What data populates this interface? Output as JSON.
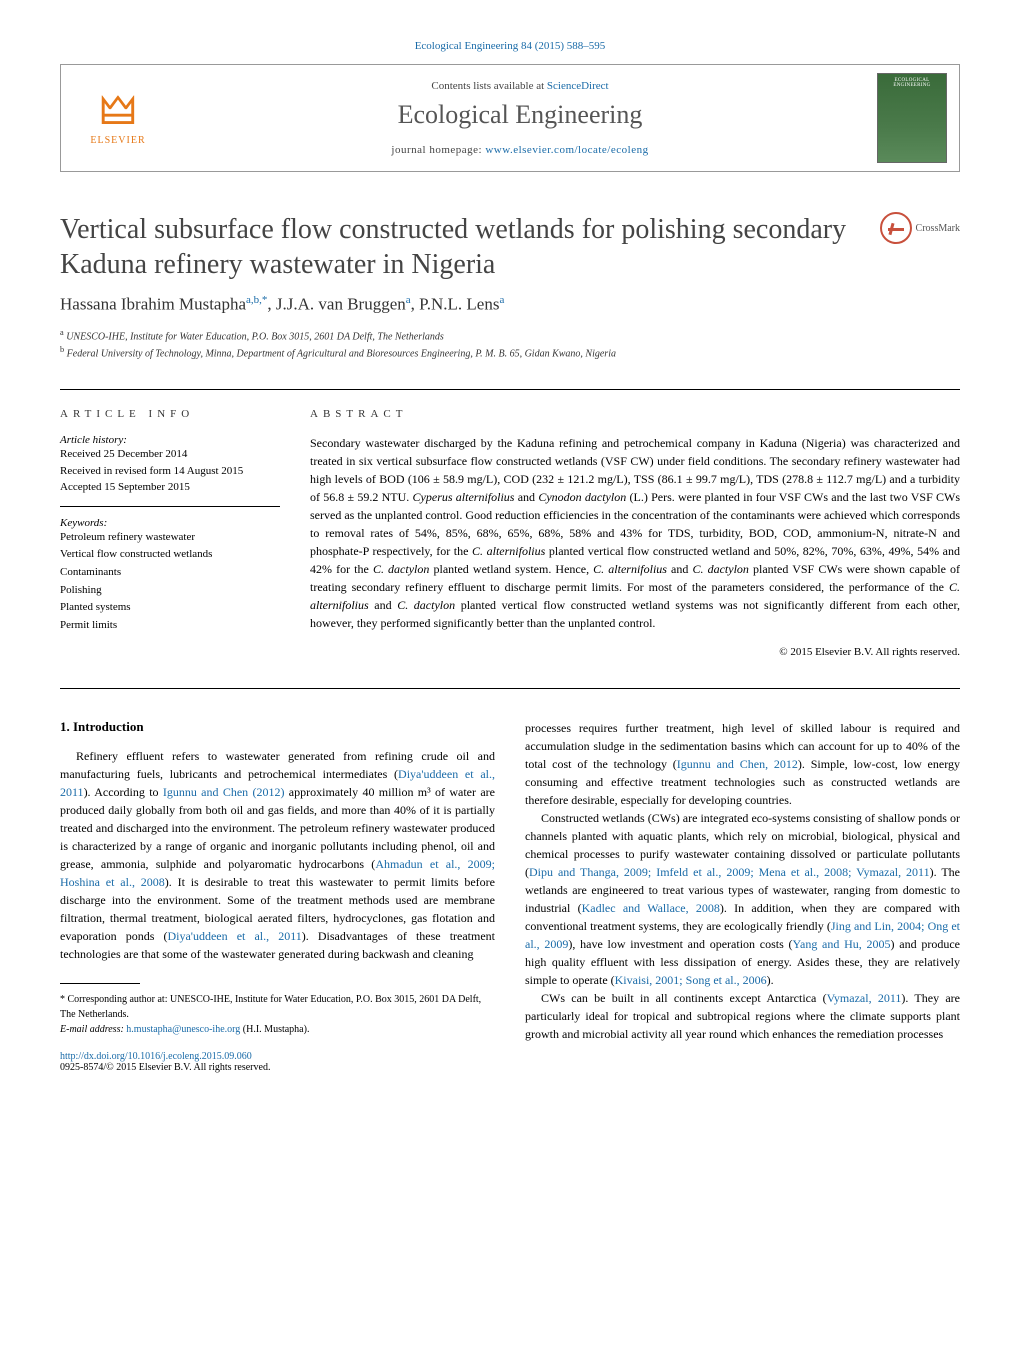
{
  "journal_ref": {
    "name": "Ecological Engineering",
    "vol_pages": "84 (2015) 588–595"
  },
  "header": {
    "contents_prefix": "Contents lists available at ",
    "contents_link": "ScienceDirect",
    "journal_name": "Ecological Engineering",
    "homepage_prefix": "journal homepage: ",
    "homepage_url": "www.elsevier.com/locate/ecoleng",
    "publisher": "ELSEVIER"
  },
  "title": "Vertical subsurface flow constructed wetlands for polishing secondary Kaduna refinery wastewater in Nigeria",
  "crossmark": "CrossMark",
  "authors_html": "Hassana Ibrahim Mustapha<sup>a,b,*</sup>, J.J.A. van Bruggen<sup>a</sup>, P.N.L. Lens<sup>a</sup>",
  "affiliations": {
    "a": "UNESCO-IHE, Institute for Water Education, P.O. Box 3015, 2601 DA Delft, The Netherlands",
    "b": "Federal University of Technology, Minna, Department of Agricultural and Bioresources Engineering, P. M. B. 65, Gidan Kwano, Nigeria"
  },
  "article_info": {
    "heading": "ARTICLE INFO",
    "history_label": "Article history:",
    "history": [
      "Received 25 December 2014",
      "Received in revised form 14 August 2015",
      "Accepted 15 September 2015"
    ],
    "keywords_label": "Keywords:",
    "keywords": [
      "Petroleum refinery wastewater",
      "Vertical flow constructed wetlands",
      "Contaminants",
      "Polishing",
      "Planted systems",
      "Permit limits"
    ]
  },
  "abstract": {
    "heading": "ABSTRACT",
    "text": "Secondary wastewater discharged by the Kaduna refining and petrochemical company in Kaduna (Nigeria) was characterized and treated in six vertical subsurface flow constructed wetlands (VSF CW) under field conditions. The secondary refinery wastewater had high levels of BOD (106 ± 58.9 mg/L), COD (232 ± 121.2 mg/L), TSS (86.1 ± 99.7 mg/L), TDS (278.8 ± 112.7 mg/L) and a turbidity of 56.8 ± 59.2 NTU. Cyperus alternifolius and Cynodon dactylon (L.) Pers. were planted in four VSF CWs and the last two VSF CWs served as the unplanted control. Good reduction efficiencies in the concentration of the contaminants were achieved which corresponds to removal rates of 54%, 85%, 68%, 65%, 68%, 58% and 43% for TDS, turbidity, BOD, COD, ammonium-N, nitrate-N and phosphate-P respectively, for the C. alternifolius planted vertical flow constructed wetland and 50%, 82%, 70%, 63%, 49%, 54% and 42% for the C. dactylon planted wetland system. Hence, C. alternifolius and C. dactylon planted VSF CWs were shown capable of treating secondary refinery effluent to discharge permit limits. For most of the parameters considered, the performance of the C. alternifolius and C. dactylon planted vertical flow constructed wetland systems was not significantly different from each other, however, they performed significantly better than the unplanted control.",
    "copyright": "© 2015 Elsevier B.V. All rights reserved."
  },
  "introduction": {
    "heading": "1. Introduction",
    "p1_pre": "Refinery effluent refers to wastewater generated from refining crude oil and manufacturing fuels, lubricants and petrochemical intermediates (",
    "p1_c1": "Diya'uddeen et al., 2011",
    "p1_mid1": "). According to ",
    "p1_c2": "Igunnu and Chen (2012)",
    "p1_mid2": " approximately 40 million m³ of water are produced daily globally from both oil and gas fields, and more than 40% of it is partially treated and discharged into the environment. The petroleum refinery wastewater produced is characterized by a range of organic and inorganic pollutants including phenol, oil and grease, ammonia, sulphide and polyaromatic hydrocarbons (",
    "p1_c3": "Ahmadun et al., 2009; Hoshina et al., 2008",
    "p1_mid3": "). It is desirable to treat this wastewater to permit limits before discharge into the environment. Some of the treatment methods used are membrane filtration, thermal treatment, biological aerated filters, hydrocyclones, gas flotation and evaporation ponds (",
    "p1_c4": "Diya'uddeen et al., 2011",
    "p1_post": "). Disadvantages of these treatment technologies are that some of the wastewater generated during backwash and cleaning",
    "p2_pre": "processes requires further treatment, high level of skilled labour is required and accumulation sludge in the sedimentation basins which can account for up to 40% of the total cost of the technology (",
    "p2_c1": "Igunnu and Chen, 2012",
    "p2_post": "). Simple, low-cost, low energy consuming and effective treatment technologies such as constructed wetlands are therefore desirable, especially for developing countries.",
    "p3_pre": "Constructed wetlands (CWs) are integrated eco-systems consisting of shallow ponds or channels planted with aquatic plants, which rely on microbial, biological, physical and chemical processes to purify wastewater containing dissolved or particulate pollutants (",
    "p3_c1": "Dipu and Thanga, 2009; Imfeld et al., 2009; Mena et al., 2008; Vymazal, 2011",
    "p3_mid1": "). The wetlands are engineered to treat various types of wastewater, ranging from domestic to industrial (",
    "p3_c2": "Kadlec and Wallace, 2008",
    "p3_mid2": "). In addition, when they are compared with conventional treatment systems, they are ecologically friendly (",
    "p3_c3": "Jing and Lin, 2004; Ong et al., 2009",
    "p3_mid3": "), have low investment and operation costs (",
    "p3_c4": "Yang and Hu, 2005",
    "p3_mid4": ") and produce high quality effluent with less dissipation of energy. Asides these, they are relatively simple to operate (",
    "p3_c5": "Kivaisi, 2001; Song et al., 2006",
    "p3_post": ").",
    "p4_pre": "CWs can be built in all continents except Antarctica (",
    "p4_c1": "Vymazal, 2011",
    "p4_post": "). They are particularly ideal for tropical and subtropical regions where the climate supports plant growth and microbial activity all year round which enhances the remediation processes"
  },
  "footnote": {
    "corresp": "* Corresponding author at: UNESCO-IHE, Institute for Water Education, P.O. Box 3015, 2601 DA Delft, The Netherlands.",
    "email_label": "E-mail address: ",
    "email": "h.mustapha@unesco-ihe.org",
    "email_suffix": " (H.I. Mustapha)."
  },
  "doi": {
    "url": "http://dx.doi.org/10.1016/j.ecoleng.2015.09.060",
    "issn_line": "0925-8574/© 2015 Elsevier B.V. All rights reserved."
  },
  "colors": {
    "link": "#1a6ba8",
    "elsevier_orange": "#e67817",
    "text": "#000000",
    "muted": "#555555"
  }
}
